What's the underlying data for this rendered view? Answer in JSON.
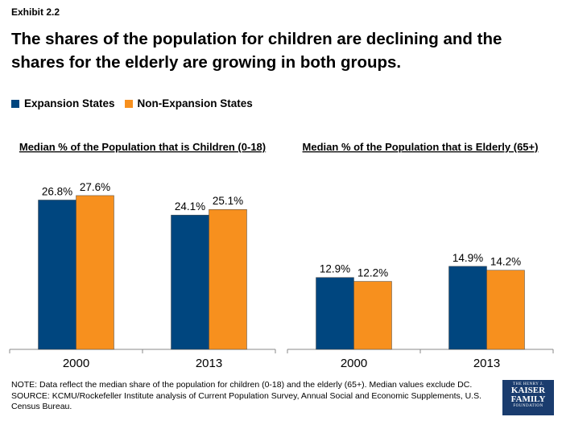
{
  "exhibit_label": "Exhibit 2.2",
  "title": "The shares of the population for children are declining and the shares for the elderly are growing in both groups.",
  "legend": [
    {
      "label": "Expansion States",
      "color": "#00467f"
    },
    {
      "label": "Non-Expansion States",
      "color": "#f7901e"
    }
  ],
  "chart_data": [
    {
      "type": "bar",
      "title": "Median % of the Population that is Children (0-18)",
      "categories": [
        "2000",
        "2013"
      ],
      "series": [
        {
          "name": "Expansion States",
          "values": [
            26.8,
            24.1
          ],
          "labels": [
            "26.8%",
            "24.1%"
          ],
          "color": "#00467f"
        },
        {
          "name": "Non-Expansion States",
          "values": [
            27.6,
            25.1
          ],
          "labels": [
            "27.6%",
            "25.1%"
          ],
          "color": "#f7901e"
        }
      ],
      "ylim": [
        0,
        30
      ],
      "grid": false
    },
    {
      "type": "bar",
      "title": "Median % of the Population that is Elderly (65+)",
      "categories": [
        "2000",
        "2013"
      ],
      "series": [
        {
          "name": "Expansion States",
          "values": [
            12.9,
            14.9
          ],
          "labels": [
            "12.9%",
            "14.9%"
          ],
          "color": "#00467f"
        },
        {
          "name": "Non-Expansion States",
          "values": [
            12.2,
            14.2
          ],
          "labels": [
            "12.2%",
            "14.2%"
          ],
          "color": "#f7901e"
        }
      ],
      "ylim": [
        0,
        30
      ],
      "grid": false
    }
  ],
  "note": "NOTE: Data reflect the median share of the population for children (0-18) and the elderly (65+). Median values exclude DC.",
  "source": "SOURCE: KCMU/Rockefeller Institute analysis of Current Population Survey, Annual Social and Economic Supplements, U.S. Census Bureau.",
  "logo": {
    "line1": "THE HENRY J.",
    "line2": "KAISER",
    "line3": "FAMILY",
    "line4": "FOUNDATION"
  }
}
